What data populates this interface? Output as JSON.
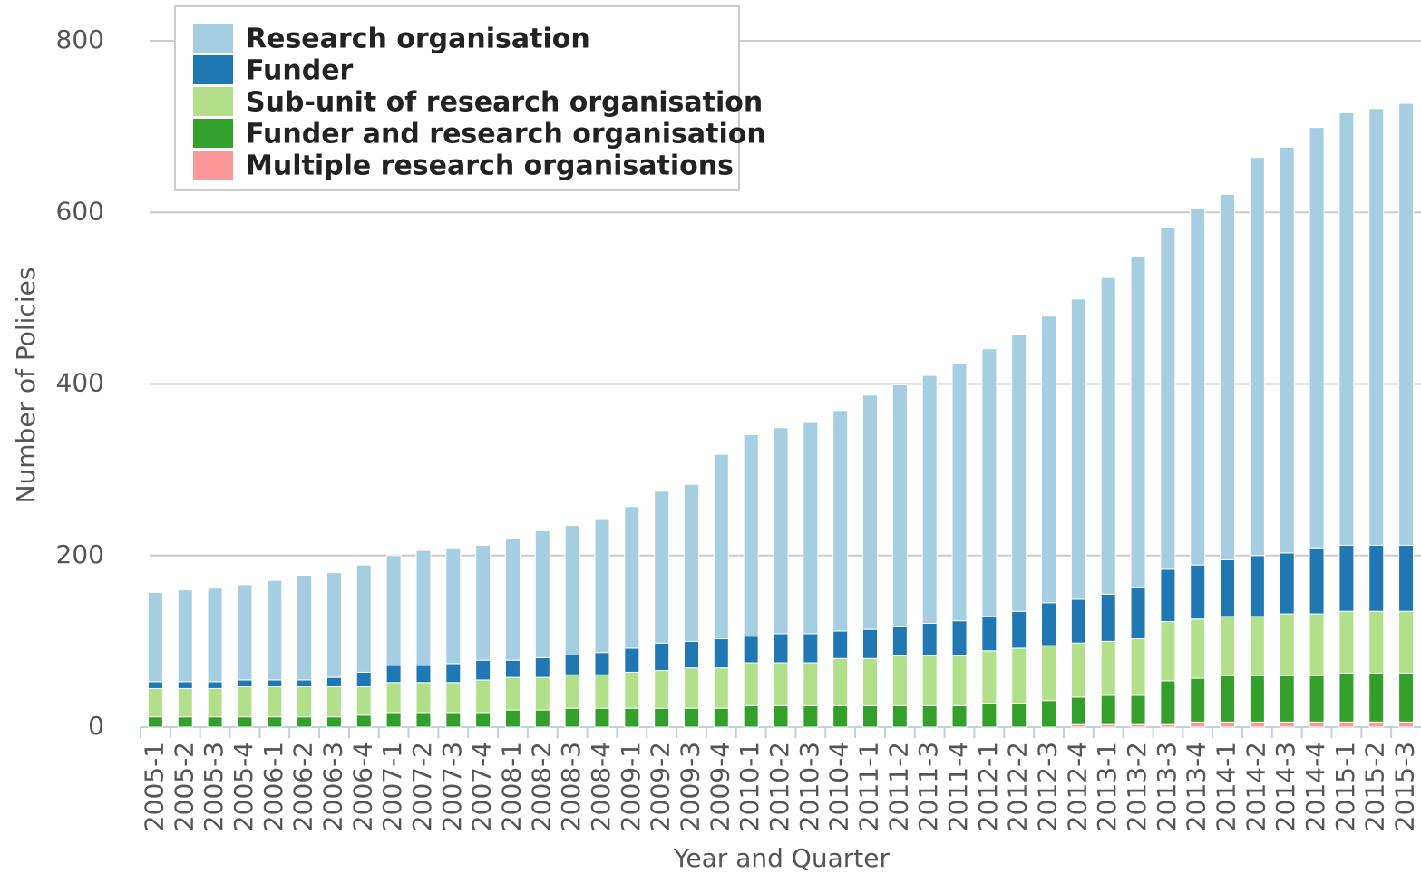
{
  "chart_data": {
    "type": "stacked_bar",
    "x_label": "Year and Quarter",
    "y_label": "Number of Policies",
    "categories": [
      "2005-1",
      "2005-2",
      "2005-3",
      "2005-4",
      "2006-1",
      "2006-2",
      "2006-3",
      "2006-4",
      "2007-1",
      "2007-2",
      "2007-3",
      "2007-4",
      "2008-1",
      "2008-2",
      "2008-3",
      "2008-4",
      "2009-1",
      "2009-2",
      "2009-3",
      "2009-4",
      "2010-1",
      "2010-2",
      "2010-3",
      "2010-4",
      "2011-1",
      "2011-2",
      "2011-3",
      "2011-4",
      "2012-1",
      "2012-2",
      "2012-3",
      "2012-4",
      "2013-1",
      "2013-2",
      "2013-3",
      "2013-4",
      "2014-1",
      "2014-2",
      "2014-3",
      "2014-4",
      "2015-1",
      "2015-2",
      "2015-3"
    ],
    "series": [
      {
        "name": "Multiple research organisations",
        "color": "#fb9a99",
        "values": [
          0,
          0,
          0,
          0,
          0,
          0,
          0,
          0,
          0,
          0,
          0,
          0,
          0,
          0,
          0,
          0,
          0,
          0,
          0,
          0,
          0,
          0,
          0,
          0,
          0,
          0,
          0,
          0,
          0,
          0,
          0,
          3,
          3,
          3,
          3,
          6,
          6,
          6,
          6,
          6,
          6,
          6,
          6
        ]
      },
      {
        "name": "Funder and research organisation",
        "color": "#33a02c",
        "values": [
          12,
          12,
          12,
          12,
          12,
          12,
          12,
          14,
          17,
          17,
          17,
          17,
          20,
          20,
          22,
          22,
          22,
          22,
          22,
          22,
          25,
          25,
          25,
          25,
          25,
          25,
          25,
          25,
          28,
          28,
          31,
          32,
          34,
          34,
          51,
          51,
          54,
          54,
          54,
          54,
          57,
          57,
          57
        ]
      },
      {
        "name": "Sub-unit of research organisation",
        "color": "#b2df8a",
        "values": [
          33,
          33,
          33,
          35,
          35,
          35,
          35,
          33,
          35,
          35,
          35,
          38,
          38,
          38,
          39,
          39,
          42,
          44,
          47,
          47,
          50,
          50,
          50,
          55,
          55,
          58,
          58,
          58,
          61,
          64,
          64,
          63,
          63,
          66,
          69,
          69,
          69,
          69,
          72,
          72,
          72,
          72,
          72
        ]
      },
      {
        "name": "Funder",
        "color": "#1f78b4",
        "values": [
          8,
          8,
          8,
          8,
          8,
          8,
          11,
          17,
          20,
          20,
          22,
          23,
          20,
          23,
          23,
          26,
          28,
          32,
          31,
          34,
          31,
          34,
          34,
          32,
          34,
          34,
          38,
          41,
          40,
          43,
          50,
          51,
          55,
          60,
          61,
          63,
          66,
          71,
          71,
          77,
          77,
          77,
          77
        ]
      },
      {
        "name": "Research organisation",
        "color": "#a6cee3",
        "values": [
          104,
          107,
          109,
          111,
          116,
          122,
          122,
          125,
          128,
          134,
          135,
          134,
          142,
          148,
          151,
          156,
          165,
          177,
          183,
          215,
          235,
          240,
          246,
          257,
          273,
          282,
          289,
          300,
          312,
          323,
          334,
          350,
          369,
          386,
          398,
          415,
          426,
          464,
          473,
          490,
          504,
          509,
          515
        ]
      }
    ],
    "ylim": [
      0,
      800
    ],
    "yticks": [
      0,
      200,
      400,
      600,
      800
    ],
    "grid": true,
    "legend": "top-left"
  }
}
